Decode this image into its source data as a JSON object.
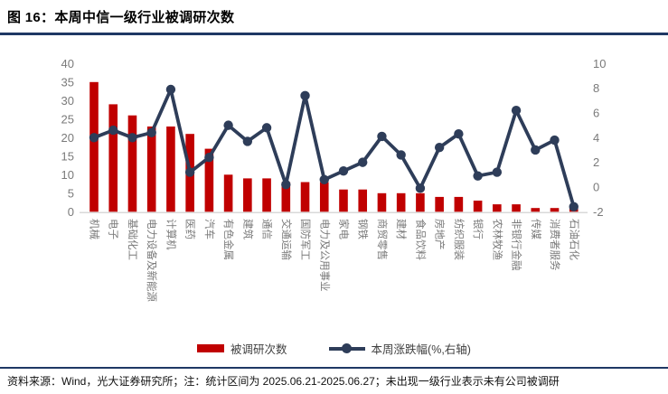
{
  "page": {
    "title": "图 16：本周中信一级行业被调研次数",
    "footer": "资料来源：Wind，光大证券研究所；注：统计区间为 2025.06.21-2025.06.27；未出现一级行业表示未有公司被调研"
  },
  "colors": {
    "bar": "#C00000",
    "line": "#2E3D59",
    "axis_text": "#7A7A7A",
    "baseline": "#D9D9D9"
  },
  "chart_data": {
    "type": "bar+line",
    "title": "本周中信一级行业被调研次数",
    "categories": [
      "机械",
      "电子",
      "基础化工",
      "电力设备及新能源",
      "计算机",
      "医药",
      "汽车",
      "有色金属",
      "建筑",
      "通信",
      "交通运输",
      "国防军工",
      "电力及公用事业",
      "家电",
      "钢铁",
      "商贸零售",
      "建材",
      "食品饮料",
      "房地产",
      "纺织服装",
      "银行",
      "农林牧渔",
      "非银行金融",
      "传媒",
      "消费者服务",
      "石油石化"
    ],
    "series": [
      {
        "name": "被调研次数",
        "type": "bar",
        "axis": "left",
        "values": [
          35,
          29,
          26,
          23,
          23,
          21,
          17,
          10,
          9,
          9,
          8,
          8,
          8,
          6,
          6,
          5,
          5,
          5,
          4,
          4,
          3,
          2,
          2,
          1,
          1,
          1
        ]
      },
      {
        "name": "本周涨跌幅(%,右轴)",
        "type": "line",
        "axis": "right",
        "values": [
          4.0,
          4.6,
          4.0,
          4.4,
          7.9,
          1.2,
          2.4,
          5.0,
          3.7,
          4.8,
          0.2,
          7.4,
          0.6,
          1.3,
          2.0,
          4.1,
          2.6,
          -0.1,
          3.2,
          4.3,
          0.9,
          1.2,
          6.2,
          3.0,
          3.8,
          -1.6
        ]
      }
    ],
    "left_axis": {
      "min": 0,
      "max": 40,
      "step": 5,
      "ticks": [
        0,
        5,
        10,
        15,
        20,
        25,
        30,
        35,
        40
      ]
    },
    "right_axis": {
      "min": -2,
      "max": 10,
      "step": 2,
      "ticks": [
        -2,
        0,
        2,
        4,
        6,
        8,
        10
      ]
    },
    "legend": [
      "被调研次数",
      "本周涨跌幅(%,右轴)"
    ],
    "legend_position": "bottom",
    "grid": false
  }
}
